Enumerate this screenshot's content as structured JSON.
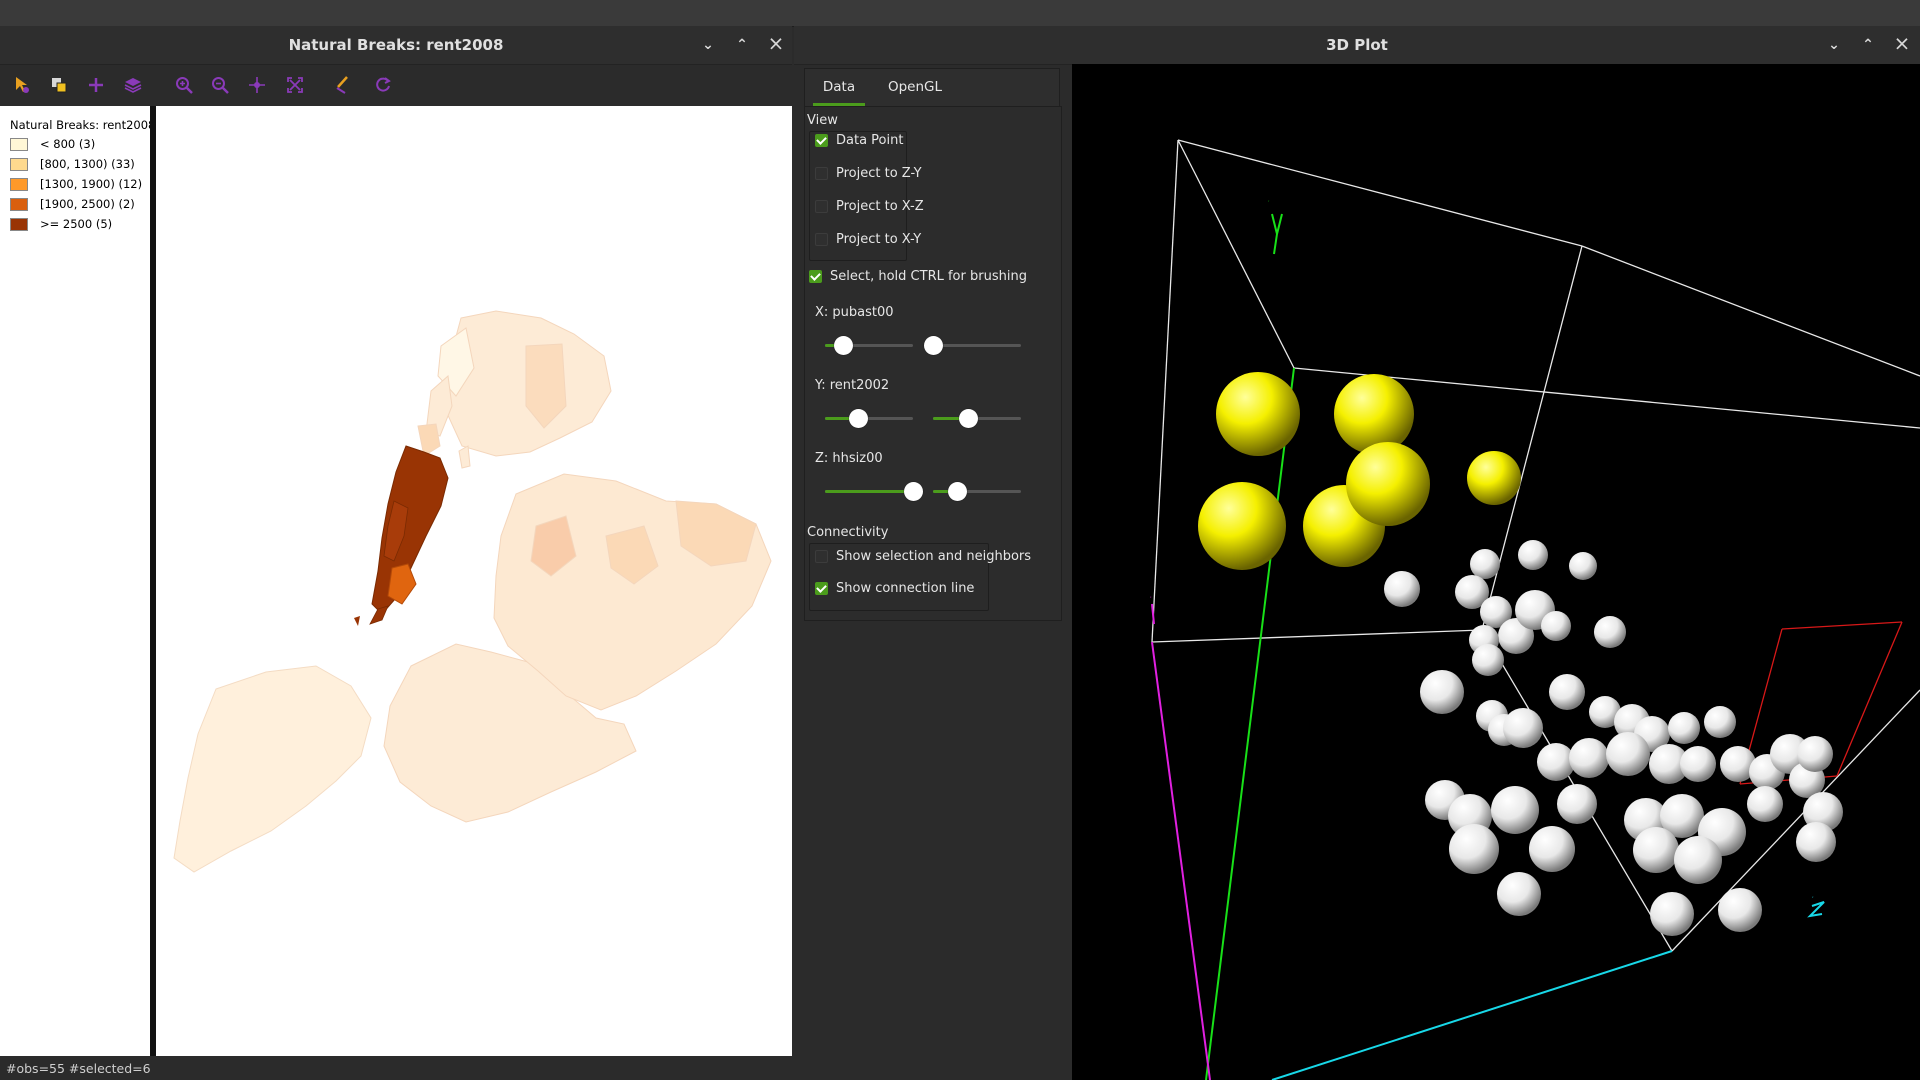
{
  "left_window": {
    "title": "Natural Breaks: rent2008",
    "legend": {
      "title": "Natural Breaks: rent2008",
      "items": [
        {
          "label": "< 800 (3)",
          "color": "#fff7d6"
        },
        {
          "label": "[800, 1300) (33)",
          "color": "#fed98e"
        },
        {
          "label": "[1300, 1900) (12)",
          "color": "#fe9929"
        },
        {
          "label": "[1900, 2500) (2)",
          "color": "#d95f0e"
        },
        {
          "label": ">= 2500 (5)",
          "color": "#993404"
        }
      ]
    },
    "toolbar_icons": [
      "select-icon",
      "selection-mode-icon",
      "add-icon",
      "layers-icon",
      "zoom-in-icon",
      "zoom-out-icon",
      "pan-icon",
      "fit-extent-icon",
      "brush-icon",
      "refresh-icon"
    ],
    "status": "#obs=55 #selected=6"
  },
  "right_window": {
    "title": "3D Plot",
    "tabs": [
      "Data",
      "OpenGL"
    ],
    "active_tab": "Data",
    "view": {
      "label": "View",
      "options": [
        {
          "label": "Data Point",
          "checked": true
        },
        {
          "label": "Project to Z-Y",
          "checked": false
        },
        {
          "label": "Project to X-Z",
          "checked": false
        },
        {
          "label": "Project to X-Y",
          "checked": false
        }
      ]
    },
    "select_option": {
      "label": "Select, hold CTRL for brushing",
      "checked": true
    },
    "sliders": [
      {
        "label": "X: pubast00",
        "left_value": 0.2,
        "right_value": 0.0
      },
      {
        "label": "Y: rent2002",
        "left_value": 0.38,
        "right_value": 0.4
      },
      {
        "label": "Z: hhsiz00",
        "left_value": 1.0,
        "right_value": 0.27
      }
    ],
    "connectivity": {
      "label": "Connectivity",
      "options": [
        {
          "label": "Show selection and neighbors",
          "checked": false
        },
        {
          "label": "Show connection line",
          "checked": true
        }
      ]
    },
    "axis_labels": {
      "x": "X",
      "y": "Y",
      "z": "Z"
    },
    "colors": {
      "accent": "#4b9c1c",
      "selected": "#f5f000",
      "unselected": "#ffffff",
      "x_axis": "#e020e0",
      "y_axis": "#18e018",
      "z_axis": "#18d8e8"
    }
  }
}
